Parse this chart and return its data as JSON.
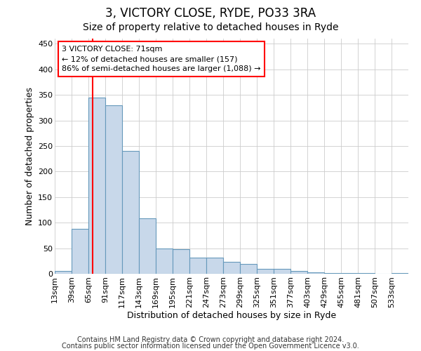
{
  "title": "3, VICTORY CLOSE, RYDE, PO33 3RA",
  "subtitle": "Size of property relative to detached houses in Ryde",
  "xlabel": "Distribution of detached houses by size in Ryde",
  "ylabel": "Number of detached properties",
  "footnote1": "Contains HM Land Registry data © Crown copyright and database right 2024.",
  "footnote2": "Contains public sector information licensed under the Open Government Licence v3.0.",
  "annotation_line1": "3 VICTORY CLOSE: 71sqm",
  "annotation_line2": "← 12% of detached houses are smaller (157)",
  "annotation_line3": "86% of semi-detached houses are larger (1,088) →",
  "bar_color": "#c8d8ea",
  "bar_edge_color": "#6699bb",
  "red_line_x": 71,
  "categories": [
    "13sqm",
    "39sqm",
    "65sqm",
    "91sqm",
    "117sqm",
    "143sqm",
    "169sqm",
    "195sqm",
    "221sqm",
    "247sqm",
    "273sqm",
    "299sqm",
    "325sqm",
    "351sqm",
    "377sqm",
    "403sqm",
    "429sqm",
    "455sqm",
    "481sqm",
    "507sqm",
    "533sqm"
  ],
  "values": [
    6,
    88,
    345,
    330,
    240,
    108,
    50,
    48,
    31,
    31,
    24,
    19,
    10,
    10,
    5,
    3,
    2,
    1,
    1,
    0,
    1
  ],
  "bin_edges": [
    13,
    39,
    65,
    91,
    117,
    143,
    169,
    195,
    221,
    247,
    273,
    299,
    325,
    351,
    377,
    403,
    429,
    455,
    481,
    507,
    533,
    559
  ],
  "ylim": [
    0,
    460
  ],
  "yticks": [
    0,
    50,
    100,
    150,
    200,
    250,
    300,
    350,
    400,
    450
  ],
  "background_color": "#ffffff",
  "grid_color": "#cccccc",
  "title_fontsize": 12,
  "subtitle_fontsize": 10,
  "axis_fontsize": 9,
  "tick_fontsize": 8,
  "footnote_fontsize": 7
}
